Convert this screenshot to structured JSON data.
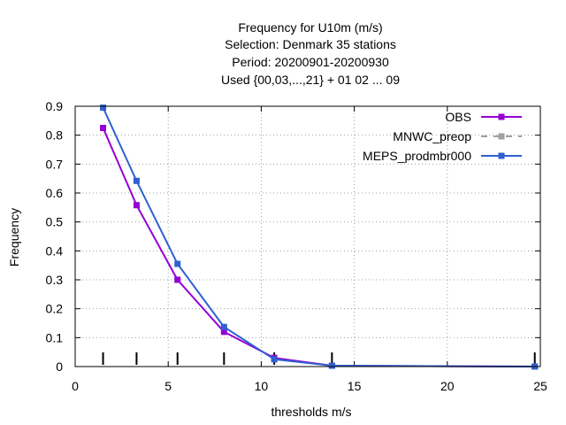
{
  "chart_data": {
    "type": "line",
    "title_lines": [
      "Frequency  for U10m (m/s)",
      "Selection: Denmark     35 stations",
      "Period: 20200901-20200930",
      "Used {00,03,...,21} + 01 02 ... 09"
    ],
    "xlabel": "thresholds m/s",
    "ylabel": "Frequency",
    "xlim": [
      0,
      25
    ],
    "ylim": [
      0,
      0.9
    ],
    "xticks": [
      0,
      5,
      10,
      15,
      20,
      25
    ],
    "yticks": [
      0,
      0.1,
      0.2,
      0.3,
      0.4,
      0.5,
      0.6,
      0.7,
      0.8,
      0.9
    ],
    "ytick_labels": [
      "0",
      "0.1",
      "0.2",
      "0.3",
      "0.4",
      "0.5",
      "0.6",
      "0.7",
      "0.8",
      "0.9"
    ],
    "grid": true,
    "legend_position": "top-right",
    "threshold_marks": [
      1.5,
      3.3,
      5.5,
      8,
      10.7,
      13.8,
      24.7
    ],
    "series": [
      {
        "name": "OBS",
        "color": "#9400d3",
        "dash": "solid",
        "x": [
          1.5,
          3.3,
          5.5,
          8,
          10.7,
          13.8,
          24.7
        ],
        "y": [
          0.825,
          0.558,
          0.3,
          0.12,
          0.03,
          0.003,
          0.0
        ]
      },
      {
        "name": "MNWC_preop",
        "color": "#a0a0a0",
        "dash": "dashed",
        "x": [],
        "y": []
      },
      {
        "name": "MEPS_prodmbr000",
        "color": "#3060d0",
        "dash": "solid",
        "x": [
          1.5,
          3.3,
          5.5,
          8,
          10.7,
          13.8,
          24.7
        ],
        "y": [
          0.895,
          0.642,
          0.355,
          0.137,
          0.025,
          0.003,
          0.0
        ]
      }
    ]
  }
}
